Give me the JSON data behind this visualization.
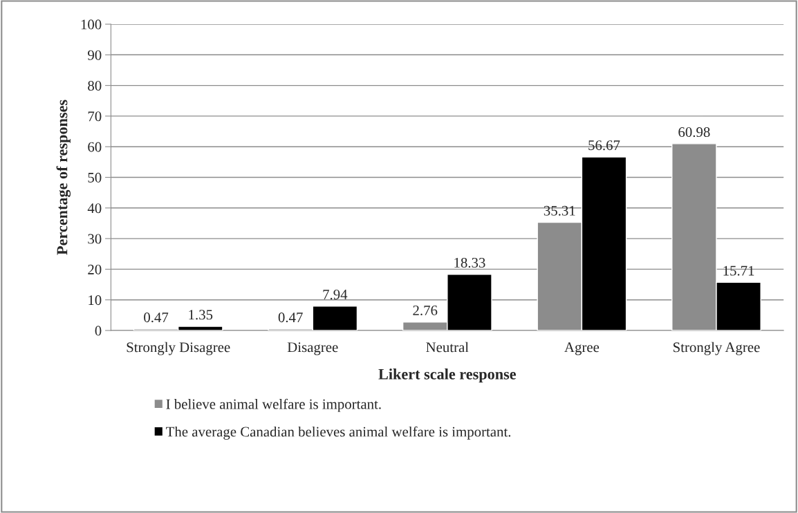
{
  "chart_data": {
    "type": "bar",
    "xlabel": "Likert scale response",
    "ylabel": "Percentage of responses",
    "categories": [
      "Strongly Disagree",
      "Disagree",
      "Neutral",
      "Agree",
      "Strongly Agree"
    ],
    "series": [
      {
        "name": "I believe animal welfare is important.",
        "color": "#8c8c8c",
        "values": [
          0.47,
          0.47,
          2.76,
          35.31,
          60.98
        ]
      },
      {
        "name": "The average Canadian believes animal welfare is important.",
        "color": "#000000",
        "values": [
          1.35,
          7.94,
          18.33,
          56.67,
          15.71
        ]
      }
    ],
    "ylim": [
      0,
      100
    ],
    "yticks": [
      0,
      10,
      20,
      30,
      40,
      50,
      60,
      70,
      80,
      90,
      100
    ],
    "grid": "y",
    "legend": "bottom",
    "data_labels": true
  }
}
